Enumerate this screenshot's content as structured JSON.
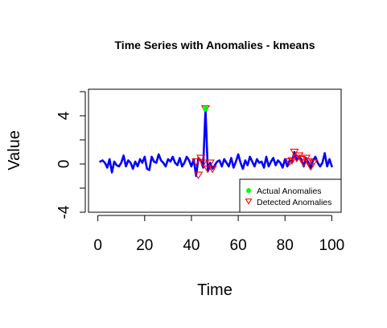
{
  "chart_data": {
    "type": "line",
    "title": "Time Series with Anomalies - kmeans",
    "xlabel": "Time",
    "ylabel": "Value",
    "xlim": [
      -4,
      104
    ],
    "ylim": [
      -4,
      6.2
    ],
    "x_ticks": [
      0,
      20,
      40,
      60,
      80,
      100
    ],
    "y_ticks": [
      -4,
      0,
      4
    ],
    "y_minor_ticks": [
      -2,
      2,
      6
    ],
    "grid": false,
    "legend_position": "bottom-right",
    "series": [
      {
        "role": "line",
        "color": "#0000FF",
        "x": [
          1,
          2,
          3,
          4,
          5,
          6,
          7,
          8,
          9,
          10,
          11,
          12,
          13,
          14,
          15,
          16,
          17,
          18,
          19,
          20,
          21,
          22,
          23,
          24,
          25,
          26,
          27,
          28,
          29,
          30,
          31,
          32,
          33,
          34,
          35,
          36,
          37,
          38,
          39,
          40,
          41,
          42,
          43,
          44,
          45,
          46,
          47,
          48,
          49,
          50,
          51,
          52,
          53,
          54,
          55,
          56,
          57,
          58,
          59,
          60,
          61,
          62,
          63,
          64,
          65,
          66,
          67,
          68,
          69,
          70,
          71,
          72,
          73,
          74,
          75,
          76,
          77,
          78,
          79,
          80,
          81,
          82,
          83,
          84,
          85,
          86,
          87,
          88,
          89,
          90,
          91,
          92,
          93,
          94,
          95,
          96,
          97,
          98,
          99,
          100
        ],
        "y": [
          0.2,
          0.3,
          0.1,
          -0.3,
          0.4,
          -0.7,
          0.2,
          -0.1,
          -0.2,
          0.1,
          0.7,
          -0.2,
          0.3,
          0.1,
          -0.4,
          0.2,
          -0.2,
          0.4,
          0.1,
          0.6,
          -0.4,
          -0.5,
          0.6,
          0.2,
          0.1,
          0.8,
          0.3,
          0.1,
          -0.2,
          0.4,
          0.2,
          0.6,
          0.1,
          -0.1,
          0.5,
          -0.2,
          0.1,
          0.6,
          0.3,
          -0.2,
          0.4,
          -1.0,
          0.5,
          0.3,
          -0.3,
          4.6,
          -0.6,
          0.1,
          -0.4,
          -0.1,
          0.2,
          0.3,
          -0.2,
          0.4,
          0.1,
          -0.2,
          0.5,
          -0.3,
          0.2,
          0.8,
          0.1,
          -0.4,
          0.3,
          -0.1,
          0.6,
          0.2,
          -0.2,
          0.4,
          0.1,
          0.2,
          -0.3,
          0.6,
          -0.2,
          0.2,
          0.5,
          -0.1,
          0.3,
          0.1,
          -0.3,
          0.4,
          -0.2,
          0.3,
          0.2,
          1.0,
          0.3,
          0.6,
          0.4,
          -0.2,
          0.5,
          0.1,
          -0.3,
          0.3,
          0.6,
          0.1,
          -0.2,
          0.1,
          0.9,
          -0.2,
          0.4,
          -0.2
        ]
      },
      {
        "name": "Actual Anomalies",
        "role": "points",
        "marker": "filled-circle",
        "color": "#00FF00",
        "x": [
          46
        ],
        "y": [
          4.6
        ]
      },
      {
        "name": "Detected Anomalies",
        "role": "points",
        "marker": "open-triangle-down",
        "color": "#FF0000",
        "x": [
          42,
          43,
          44,
          45,
          46,
          47,
          48,
          49,
          82,
          83,
          84,
          85,
          86,
          87,
          88,
          89,
          90,
          91,
          92
        ],
        "y": [
          0.2,
          -0.9,
          0.5,
          0.1,
          4.6,
          -0.4,
          0.1,
          -0.4,
          0.2,
          0.3,
          1.0,
          0.5,
          0.7,
          0.4,
          0.1,
          0.5,
          0.2,
          -0.2,
          0.1
        ]
      }
    ]
  }
}
